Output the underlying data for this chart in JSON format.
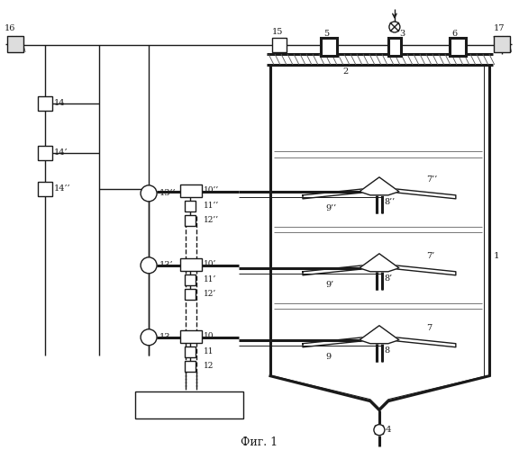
{
  "fig_label": "Фиг. 1",
  "bg_color": "#ffffff",
  "line_color": "#1a1a1a",
  "lw": 1.0,
  "lw_thick": 2.2,
  "lw_thin": 0.7
}
